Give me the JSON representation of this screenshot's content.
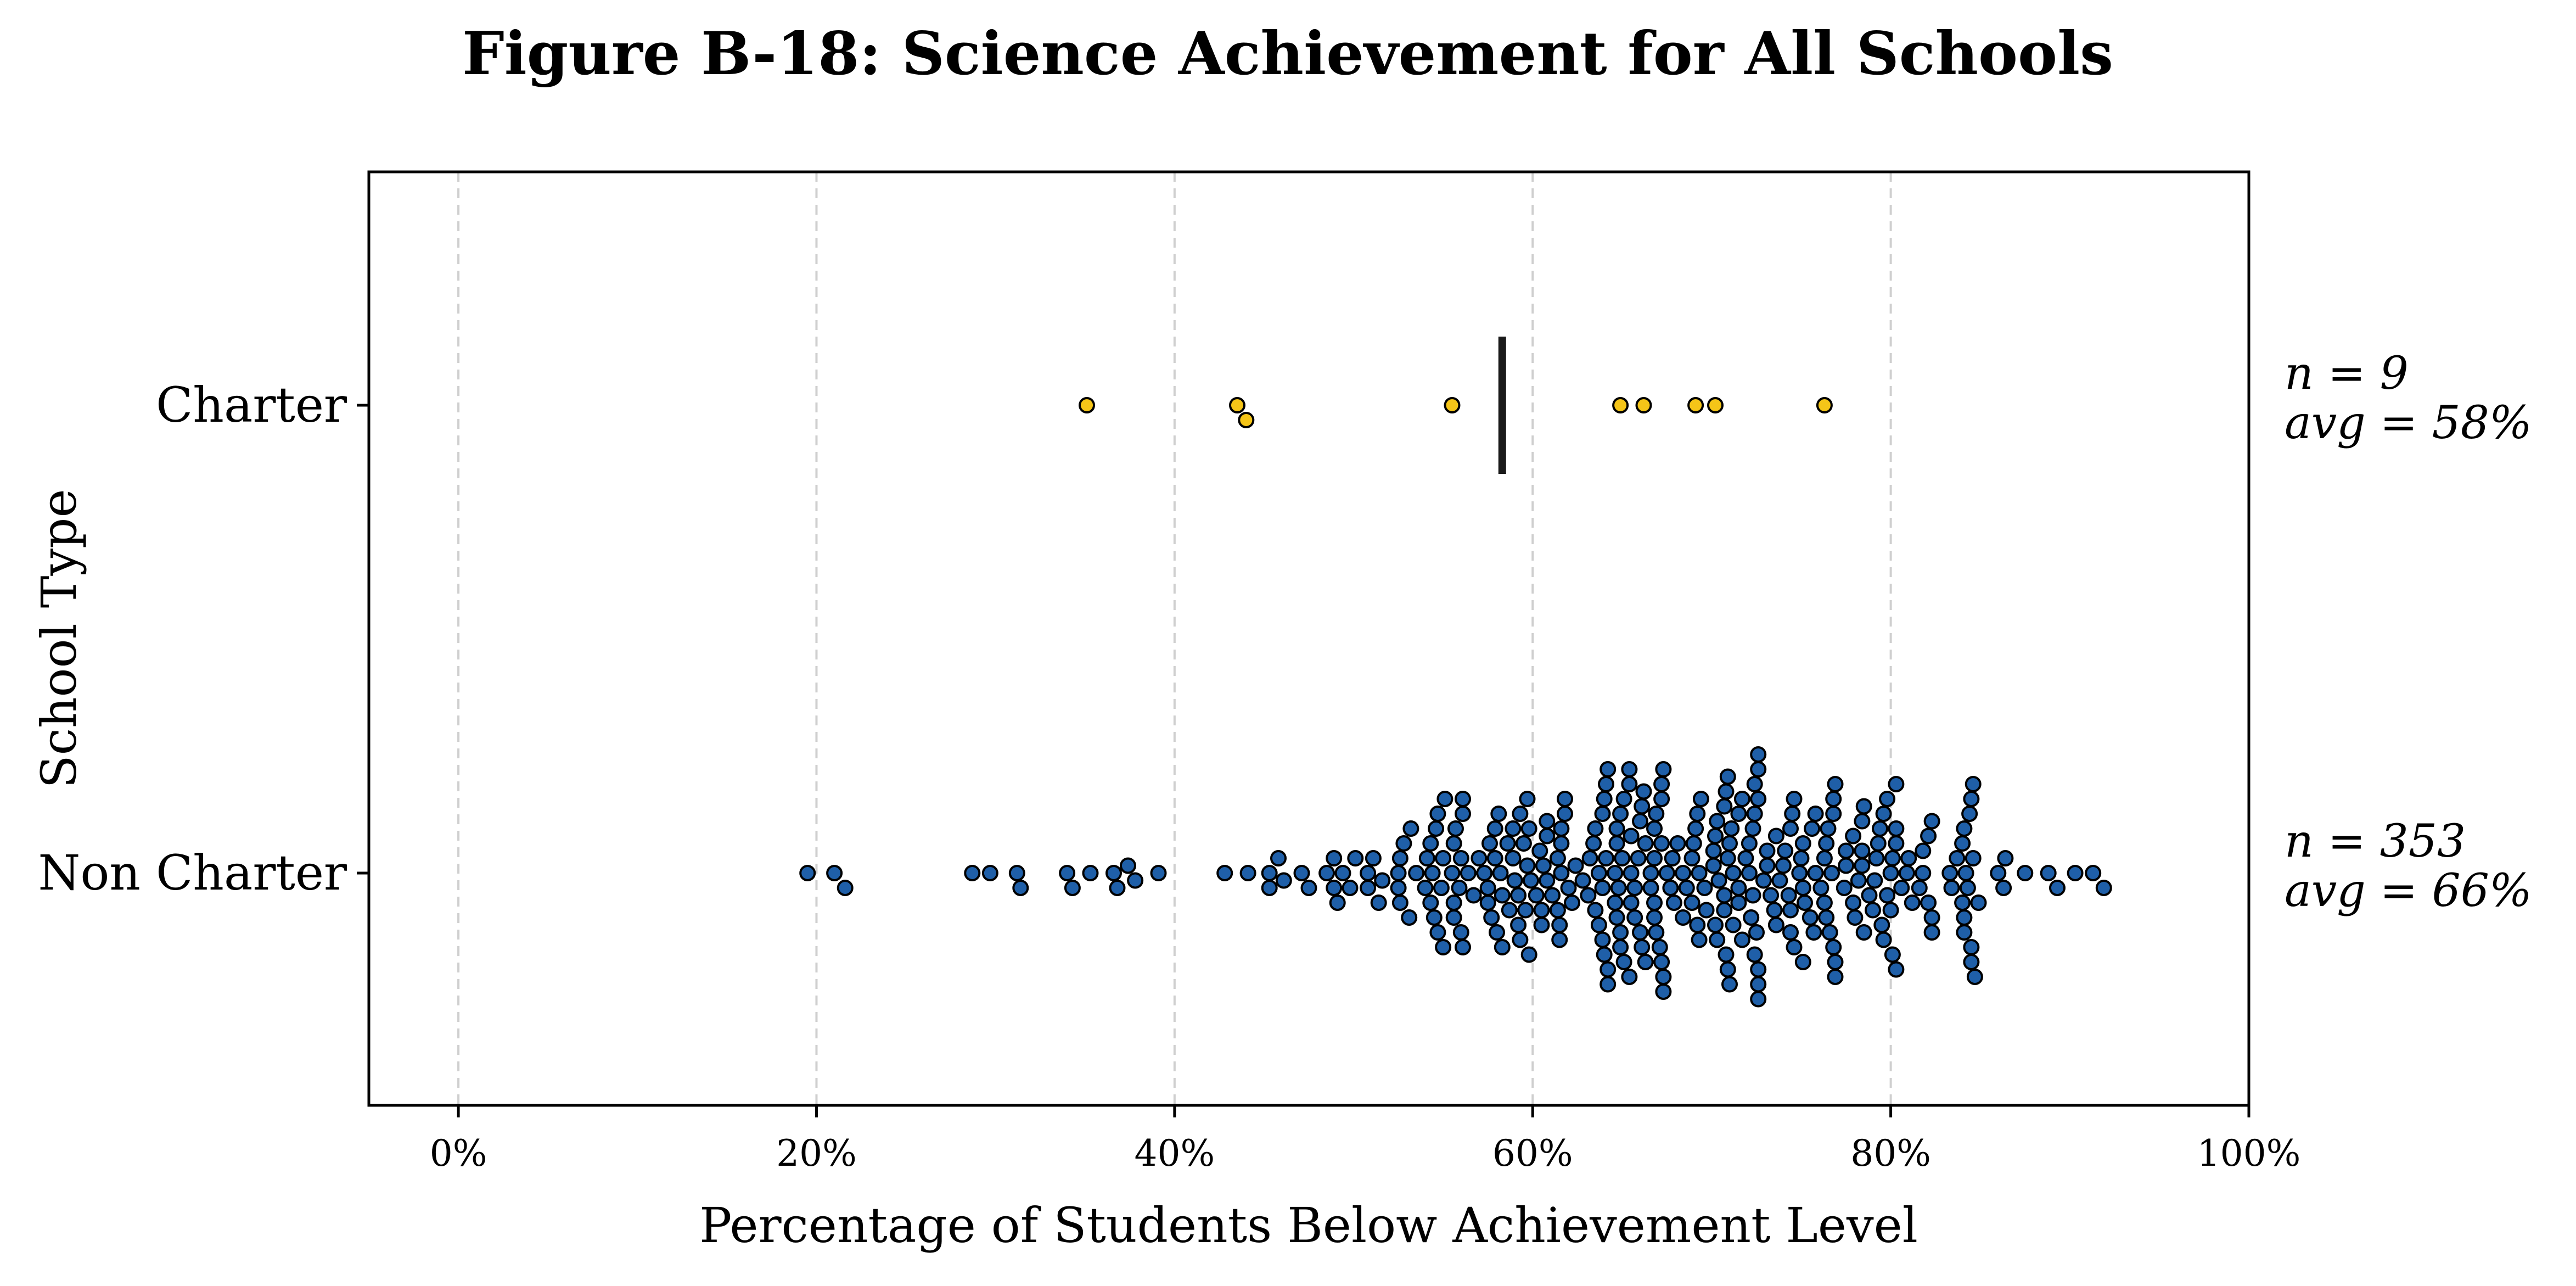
{
  "chart_data": {
    "type": "scatter",
    "title": "Figure B-18: Science Achievement for All Schools",
    "xlabel": "Percentage of Students Below Achievement Level",
    "ylabel": "School Type",
    "xlim": [
      -5,
      100
    ],
    "x_tick_values": [
      0,
      20,
      40,
      60,
      80,
      100
    ],
    "x_tick_labels": [
      "0%",
      "20%",
      "40%",
      "60%",
      "80%",
      "100%"
    ],
    "grid": "vertical dashed",
    "categories": [
      "Charter",
      "Non Charter"
    ],
    "colors": {
      "Charter": "#f5c518",
      "Non Charter": "#1f5fa8"
    },
    "series": [
      {
        "category": "Charter",
        "n_label": "n = 9",
        "avg_label": "avg = 58%",
        "mean": 58.3,
        "values": [
          35.1,
          43.5,
          44.0,
          55.5,
          64.9,
          66.2,
          69.1,
          70.2,
          76.3
        ]
      },
      {
        "category": "Non Charter",
        "n_label": "n = 353",
        "avg_label": "avg = 66%",
        "mean": 66,
        "values": []
      }
    ]
  }
}
